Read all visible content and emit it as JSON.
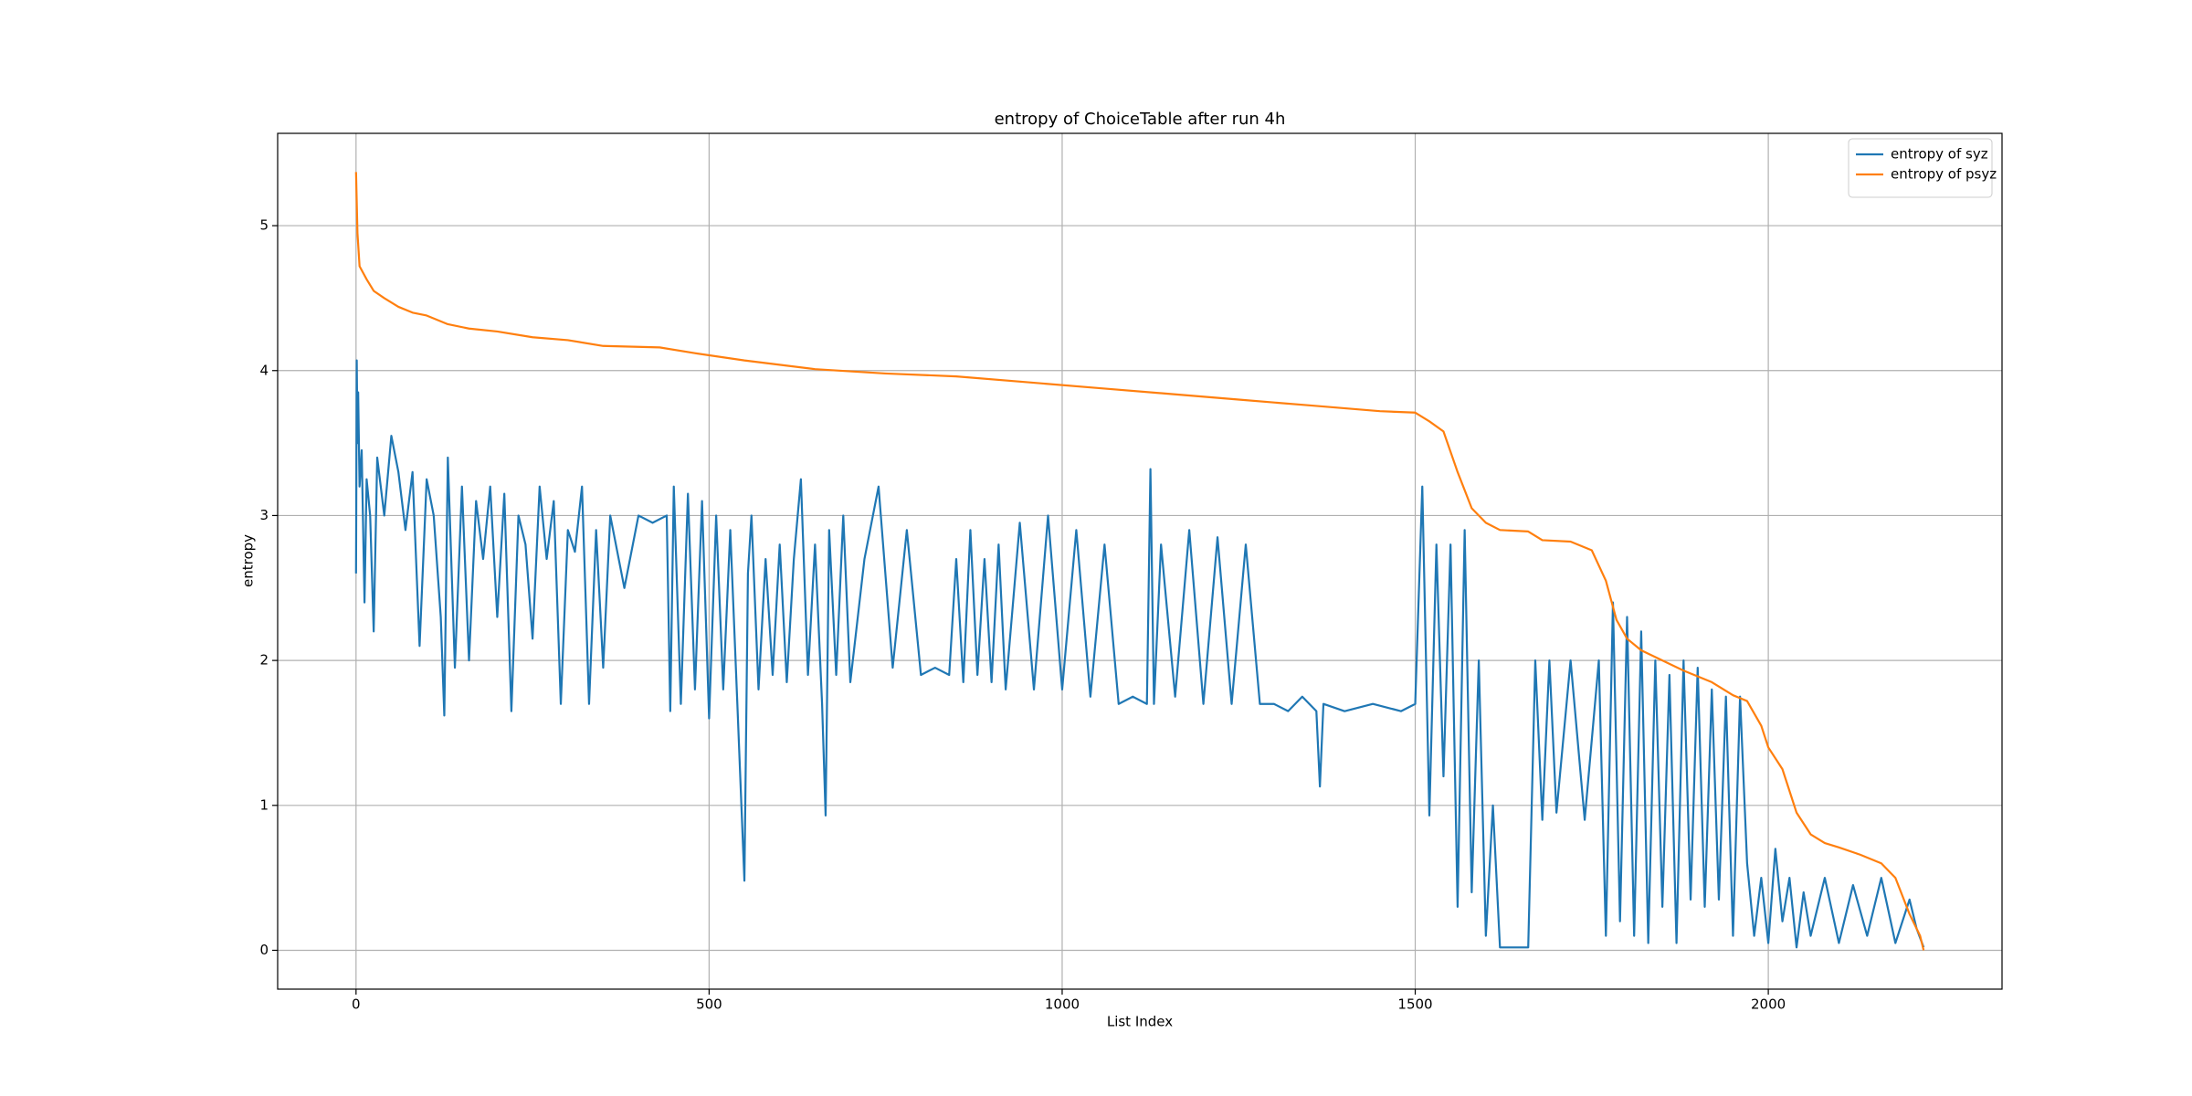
{
  "chart_data": {
    "type": "line",
    "title": "entropy of ChoiceTable after run 4h",
    "xlabel": "List Index",
    "ylabel": "entropy",
    "xlim": [
      -111,
      2331
    ],
    "ylim": [
      -0.268,
      5.637
    ],
    "xticks": [
      0,
      500,
      1000,
      1500,
      2000
    ],
    "yticks": [
      0,
      1,
      2,
      3,
      4,
      5
    ],
    "grid": true,
    "legend": "upper right",
    "series": [
      {
        "name": "entropy of syz",
        "color": "#1f77b4",
        "x": [
          0,
          1,
          2,
          3,
          5,
          8,
          12,
          15,
          20,
          25,
          30,
          40,
          50,
          60,
          70,
          80,
          90,
          100,
          110,
          120,
          125,
          130,
          140,
          150,
          160,
          170,
          180,
          190,
          200,
          210,
          220,
          230,
          240,
          250,
          260,
          270,
          280,
          290,
          300,
          310,
          320,
          330,
          340,
          350,
          360,
          380,
          400,
          420,
          440,
          445,
          450,
          460,
          470,
          480,
          490,
          500,
          510,
          520,
          530,
          540,
          550,
          555,
          560,
          570,
          580,
          590,
          600,
          610,
          620,
          630,
          640,
          650,
          660,
          665,
          670,
          680,
          690,
          700,
          720,
          740,
          760,
          780,
          800,
          820,
          840,
          850,
          860,
          870,
          880,
          890,
          900,
          910,
          920,
          940,
          960,
          980,
          1000,
          1020,
          1040,
          1060,
          1080,
          1100,
          1120,
          1125,
          1130,
          1140,
          1160,
          1180,
          1200,
          1220,
          1240,
          1260,
          1280,
          1300,
          1320,
          1340,
          1360,
          1365,
          1370,
          1400,
          1440,
          1480,
          1500,
          1510,
          1520,
          1530,
          1540,
          1550,
          1560,
          1570,
          1580,
          1590,
          1600,
          1610,
          1620,
          1640,
          1660,
          1670,
          1680,
          1690,
          1700,
          1720,
          1740,
          1760,
          1770,
          1780,
          1790,
          1800,
          1810,
          1820,
          1830,
          1840,
          1850,
          1860,
          1870,
          1880,
          1890,
          1900,
          1910,
          1920,
          1930,
          1940,
          1950,
          1960,
          1970,
          1980,
          1990,
          2000,
          2010,
          2020,
          2030,
          2040,
          2050,
          2060,
          2080,
          2100,
          2120,
          2140,
          2160,
          2180,
          2200,
          2210,
          2220
        ],
        "values": [
          2.6,
          4.07,
          3.5,
          3.85,
          3.2,
          3.45,
          2.4,
          3.25,
          3.0,
          2.2,
          3.4,
          3.0,
          3.55,
          3.3,
          2.9,
          3.3,
          2.1,
          3.25,
          3.0,
          2.3,
          1.62,
          3.4,
          1.95,
          3.2,
          2.0,
          3.1,
          2.7,
          3.2,
          2.3,
          3.15,
          1.65,
          3.0,
          2.8,
          2.15,
          3.2,
          2.7,
          3.1,
          1.7,
          2.9,
          2.75,
          3.2,
          1.7,
          2.9,
          1.95,
          3.0,
          2.5,
          3.0,
          2.95,
          3.0,
          1.65,
          3.2,
          1.7,
          3.15,
          1.8,
          3.1,
          1.6,
          3.0,
          1.8,
          2.9,
          1.7,
          0.48,
          2.6,
          3.0,
          1.8,
          2.7,
          1.9,
          2.8,
          1.85,
          2.7,
          3.25,
          1.9,
          2.8,
          1.7,
          0.93,
          2.9,
          1.9,
          3.0,
          1.85,
          2.7,
          3.2,
          1.95,
          2.9,
          1.9,
          1.95,
          1.9,
          2.7,
          1.85,
          2.9,
          1.9,
          2.7,
          1.85,
          2.8,
          1.8,
          2.95,
          1.8,
          3.0,
          1.8,
          2.9,
          1.75,
          2.8,
          1.7,
          1.75,
          1.7,
          3.32,
          1.7,
          2.8,
          1.75,
          2.9,
          1.7,
          2.85,
          1.7,
          2.8,
          1.7,
          1.7,
          1.65,
          1.75,
          1.65,
          1.13,
          1.7,
          1.65,
          1.7,
          1.65,
          1.7,
          3.2,
          0.93,
          2.8,
          1.2,
          2.8,
          0.3,
          2.9,
          0.4,
          2.0,
          0.1,
          1.0,
          0.02,
          0.02,
          0.02,
          2.0,
          0.9,
          2.0,
          0.95,
          2.0,
          0.9,
          2.0,
          0.1,
          2.4,
          0.2,
          2.3,
          0.1,
          2.2,
          0.05,
          2.0,
          0.3,
          1.9,
          0.05,
          2.0,
          0.35,
          1.95,
          0.3,
          1.8,
          0.35,
          1.75,
          0.1,
          1.75,
          0.6,
          0.1,
          0.5,
          0.05,
          0.7,
          0.2,
          0.5,
          0.02,
          0.4,
          0.1,
          0.5,
          0.05,
          0.45,
          0.1,
          0.5,
          0.05,
          0.35,
          0.15,
          0.02
        ]
      },
      {
        "name": "entropy of psyz",
        "color": "#ff7f0e",
        "x": [
          0,
          2,
          5,
          15,
          25,
          40,
          60,
          80,
          100,
          130,
          160,
          200,
          250,
          300,
          350,
          430,
          480,
          550,
          650,
          750,
          850,
          950,
          1050,
          1150,
          1250,
          1350,
          1450,
          1500,
          1520,
          1540,
          1560,
          1580,
          1600,
          1620,
          1660,
          1680,
          1720,
          1750,
          1770,
          1785,
          1800,
          1820,
          1850,
          1880,
          1920,
          1950,
          1970,
          1990,
          2000,
          2020,
          2040,
          2060,
          2080,
          2100,
          2130,
          2160,
          2180,
          2200,
          2215,
          2220
        ],
        "values": [
          5.37,
          4.95,
          4.72,
          4.63,
          4.55,
          4.5,
          4.44,
          4.4,
          4.38,
          4.32,
          4.29,
          4.27,
          4.23,
          4.21,
          4.17,
          4.16,
          4.12,
          4.07,
          4.01,
          3.98,
          3.96,
          3.92,
          3.88,
          3.84,
          3.8,
          3.76,
          3.72,
          3.71,
          3.65,
          3.58,
          3.3,
          3.05,
          2.95,
          2.9,
          2.89,
          2.83,
          2.82,
          2.76,
          2.55,
          2.28,
          2.15,
          2.07,
          2.0,
          1.93,
          1.85,
          1.76,
          1.72,
          1.55,
          1.4,
          1.25,
          0.95,
          0.8,
          0.74,
          0.71,
          0.66,
          0.6,
          0.5,
          0.25,
          0.1,
          0
        ]
      }
    ]
  }
}
